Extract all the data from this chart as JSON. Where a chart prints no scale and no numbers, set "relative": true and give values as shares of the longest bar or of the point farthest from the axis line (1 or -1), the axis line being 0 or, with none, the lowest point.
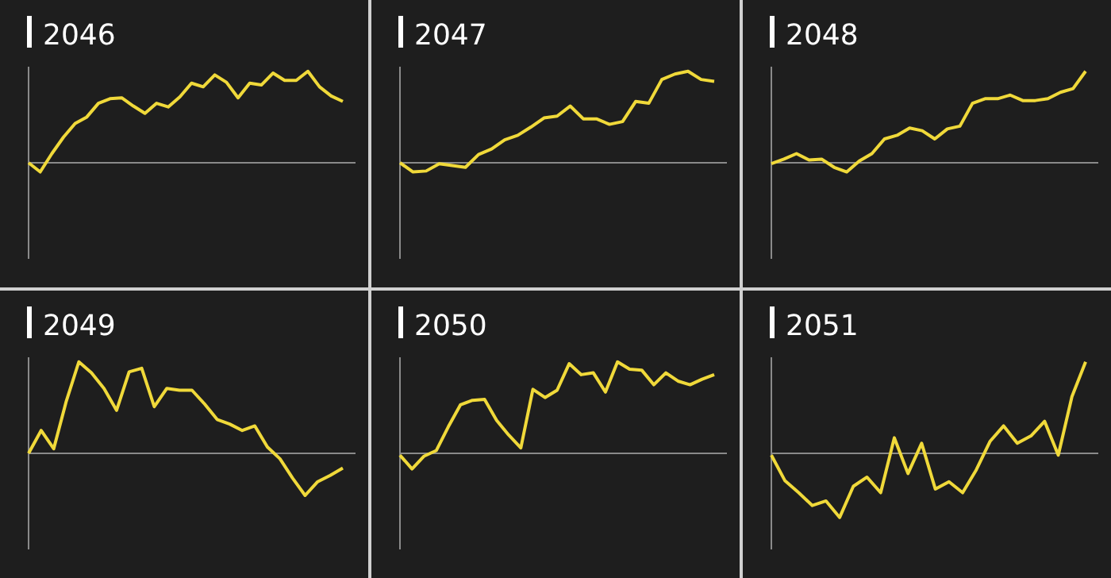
{
  "chart_data": [
    {
      "type": "line",
      "title": "2046",
      "relative": true,
      "color": "#f0d93a",
      "categories": [
        null,
        null,
        null,
        null,
        null,
        null,
        null,
        null,
        null,
        null,
        null,
        null,
        null,
        null,
        null,
        null,
        null,
        null,
        null,
        null,
        null,
        null,
        null,
        null,
        null,
        null,
        null,
        null
      ],
      "values": [
        0,
        -0.1,
        0.1,
        0.28,
        0.43,
        0.5,
        0.65,
        0.7,
        0.71,
        0.62,
        0.54,
        0.65,
        0.61,
        0.72,
        0.87,
        0.83,
        0.96,
        0.88,
        0.71,
        0.87,
        0.85,
        0.98,
        0.9,
        0.9,
        1,
        0.83,
        0.73,
        0.67
      ]
    },
    {
      "type": "line",
      "title": "2047",
      "relative": true,
      "color": "#f0d93a",
      "categories": [
        null,
        null,
        null,
        null,
        null,
        null,
        null,
        null,
        null,
        null,
        null,
        null,
        null,
        null,
        null,
        null,
        null,
        null,
        null,
        null,
        null,
        null,
        null,
        null,
        null
      ],
      "values": [
        0,
        -0.1,
        -0.09,
        -0.01,
        -0.03,
        -0.05,
        0.09,
        0.15,
        0.25,
        0.3,
        0.39,
        0.49,
        0.51,
        0.62,
        0.48,
        0.48,
        0.42,
        0.45,
        0.67,
        0.65,
        0.91,
        0.97,
        1,
        0.91,
        0.89
      ]
    },
    {
      "type": "line",
      "title": "2048",
      "relative": true,
      "color": "#f0d93a",
      "categories": [
        null,
        null,
        null,
        null,
        null,
        null,
        null,
        null,
        null,
        null,
        null,
        null,
        null,
        null,
        null,
        null,
        null,
        null,
        null,
        null,
        null,
        null,
        null,
        null,
        null,
        null
      ],
      "values": [
        -0.01,
        0.04,
        0.1,
        0.03,
        0.04,
        -0.05,
        -0.1,
        0.02,
        0.1,
        0.26,
        0.3,
        0.38,
        0.35,
        0.26,
        0.37,
        0.4,
        0.65,
        0.7,
        0.7,
        0.74,
        0.68,
        0.68,
        0.7,
        0.77,
        0.81,
        1
      ]
    },
    {
      "type": "line",
      "title": "2049",
      "relative": true,
      "color": "#f0d93a",
      "categories": [
        null,
        null,
        null,
        null,
        null,
        null,
        null,
        null,
        null,
        null,
        null,
        null,
        null,
        null,
        null,
        null,
        null,
        null,
        null,
        null,
        null,
        null,
        null,
        null,
        null,
        null
      ],
      "values": [
        0,
        0.25,
        0.05,
        0.57,
        1,
        0.88,
        0.71,
        0.47,
        0.89,
        0.93,
        0.51,
        0.71,
        0.69,
        0.69,
        0.54,
        0.37,
        0.32,
        0.25,
        0.3,
        0.07,
        -0.06,
        -0.27,
        -0.46,
        -0.31,
        -0.24,
        -0.16
      ]
    },
    {
      "type": "line",
      "title": "2050",
      "relative": true,
      "color": "#f0d93a",
      "categories": [
        null,
        null,
        null,
        null,
        null,
        null,
        null,
        null,
        null,
        null,
        null,
        null,
        null,
        null,
        null,
        null,
        null,
        null,
        null,
        null,
        null,
        null,
        null,
        null,
        null,
        null,
        null
      ],
      "values": [
        -0.02,
        -0.17,
        -0.03,
        0.03,
        0.29,
        0.53,
        0.58,
        0.59,
        0.36,
        0.2,
        0.06,
        0.7,
        0.61,
        0.69,
        0.98,
        0.86,
        0.88,
        0.67,
        1,
        0.92,
        0.91,
        0.75,
        0.88,
        0.79,
        0.75,
        0.81,
        0.86
      ]
    },
    {
      "type": "line",
      "title": "2051",
      "relative": true,
      "color": "#f0d93a",
      "categories": [
        null,
        null,
        null,
        null,
        null,
        null,
        null,
        null,
        null,
        null,
        null,
        null,
        null,
        null,
        null,
        null,
        null,
        null,
        null,
        null,
        null,
        null,
        null,
        null
      ],
      "values": [
        -0.02,
        -0.3,
        -0.43,
        -0.57,
        -0.52,
        -0.7,
        -0.36,
        -0.26,
        -0.43,
        0.17,
        -0.22,
        0.11,
        -0.39,
        -0.31,
        -0.43,
        -0.18,
        0.13,
        0.3,
        0.11,
        0.19,
        0.35,
        -0.02,
        0.62,
        1
      ]
    }
  ]
}
